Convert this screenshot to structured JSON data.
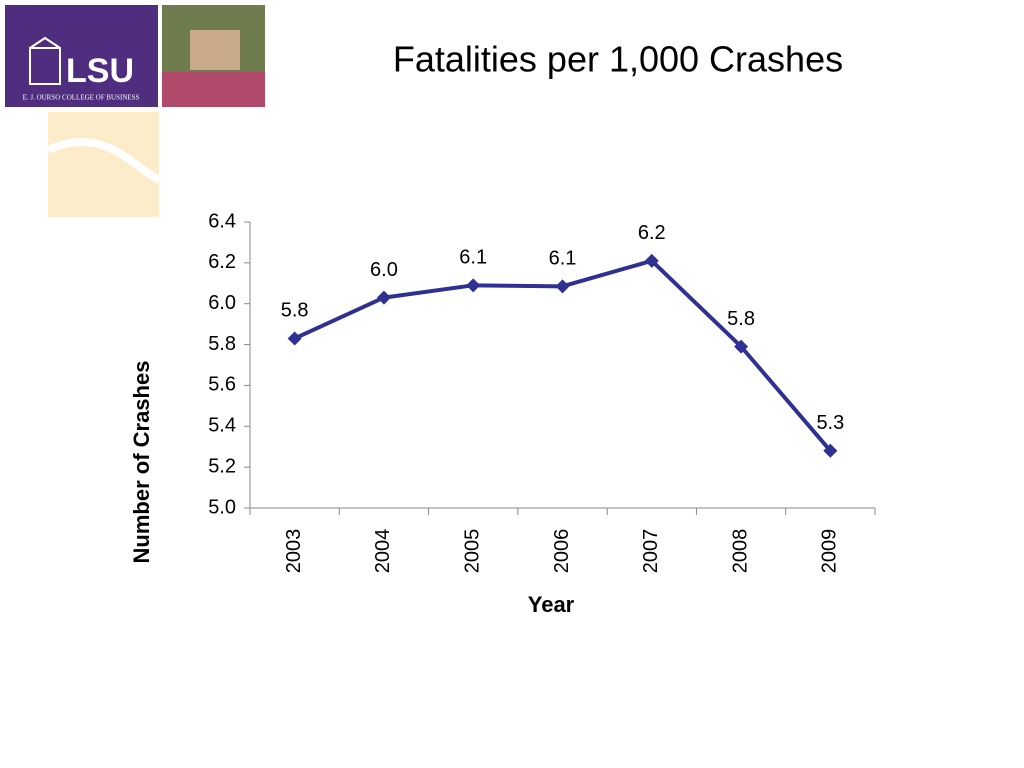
{
  "logo": {
    "name": "LSU",
    "subtitle": "E. J. OURSO COLLEGE OF BUSINESS"
  },
  "chart_data": {
    "type": "line",
    "title": "Fatalities per 1,000 Crashes",
    "x_label": "Year",
    "y_label": "Number of Crashes",
    "categories": [
      "2003",
      "2004",
      "2005",
      "2006",
      "2007",
      "2008",
      "2009"
    ],
    "values": [
      5.83,
      6.03,
      6.09,
      6.085,
      6.21,
      5.79,
      5.28
    ],
    "value_labels": [
      "5.8",
      "6.0",
      "6.1",
      "6.1",
      "6.2",
      "5.8",
      "5.3"
    ],
    "color": "#2e3192",
    "ylim": [
      5.0,
      6.4
    ],
    "yticks": [
      {
        "value": 5.0,
        "label": "5.0"
      },
      5.2,
      5.4,
      5.6,
      5.8,
      {
        "value": 6.0,
        "label": "6.0"
      },
      6.2,
      6.4
    ],
    "grid": false
  }
}
